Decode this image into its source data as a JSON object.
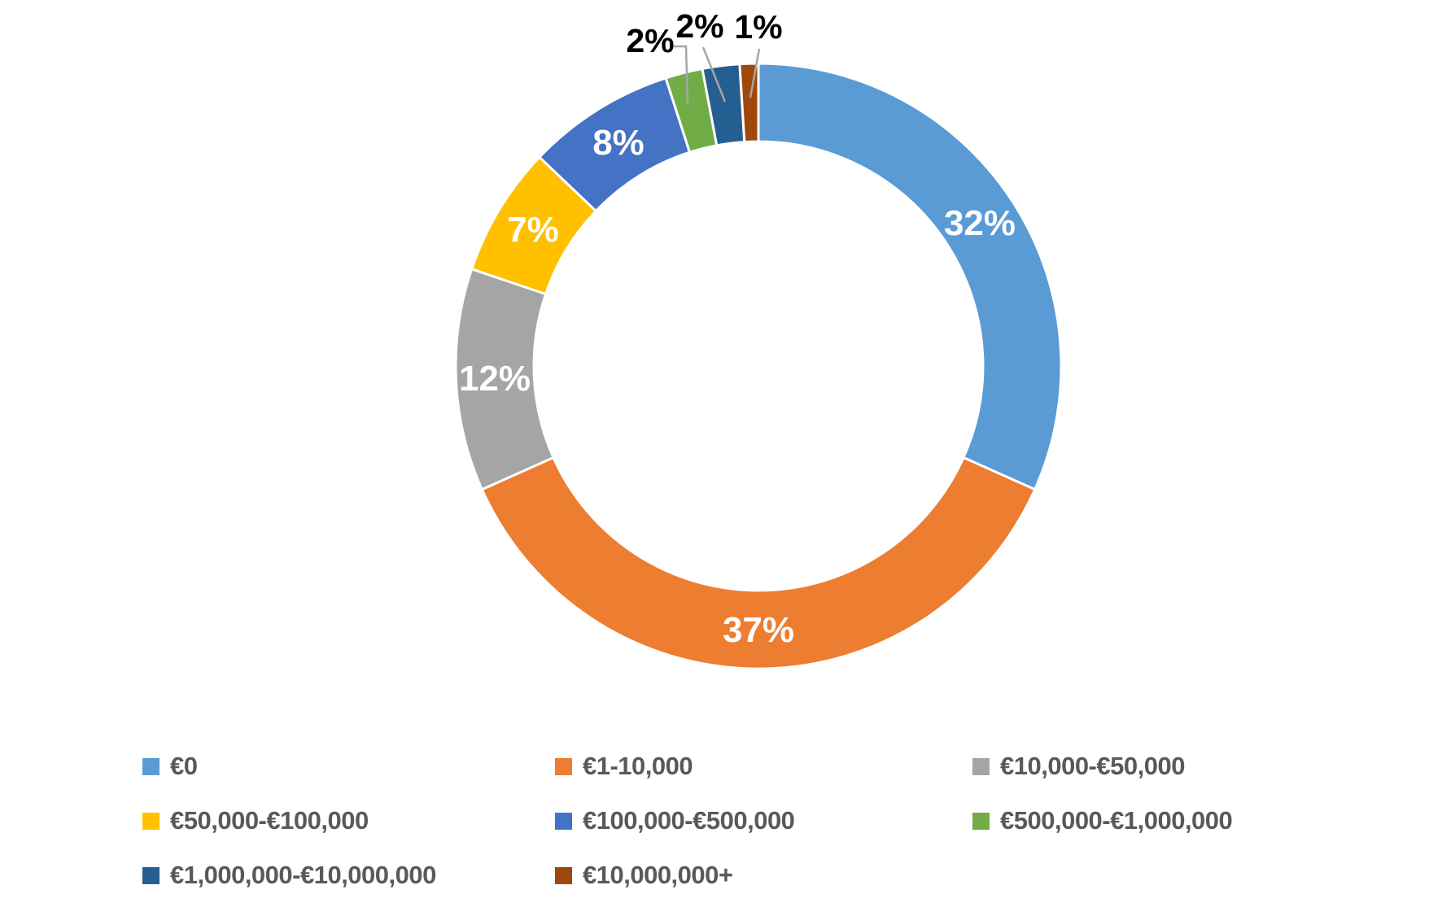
{
  "chart_data": {
    "type": "pie",
    "subtype": "donut",
    "title": "",
    "categories": [
      "€0",
      "€1-10,000",
      "€10,000-€50,000",
      "€50,000-€100,000",
      "€100,000-€500,000",
      "€500,000-€1,000,000",
      "€1,000,000-€10,000,000",
      "€10,000,000+"
    ],
    "values": [
      32,
      37,
      12,
      7,
      8,
      2,
      2,
      1
    ],
    "unit": "%",
    "slice_labels": [
      "32%",
      "37%",
      "12%",
      "7%",
      "8%",
      "2%",
      "2%",
      "1%"
    ],
    "colors": [
      "#5B9BD5",
      "#ED7D31",
      "#A5A5A5",
      "#FFC000",
      "#4472C4",
      "#70AD47",
      "#255E91",
      "#9E480E"
    ],
    "label_placement": [
      "inside",
      "inside",
      "inside",
      "inside",
      "inside",
      "callout",
      "callout",
      "callout"
    ],
    "inside_label_color": "#FFFFFF",
    "callout_label_color": "#000000",
    "leader_line_color": "#A6A6A6",
    "separator_color": "#FFFFFF",
    "start_angle_deg": 0,
    "direction": "clockwise",
    "legend_position": "bottom",
    "grid": false
  },
  "legend": {
    "text_color": "#595959"
  }
}
